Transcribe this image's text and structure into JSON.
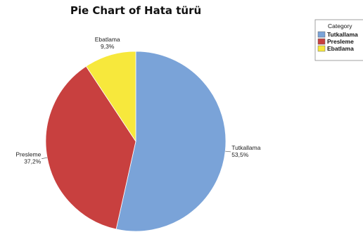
{
  "chart_data": {
    "type": "pie",
    "title": "Pie Chart of Hata türü",
    "legend_title": "Category",
    "legend_position": "top-right",
    "slices": [
      {
        "name": "Tutkallama",
        "value": 53.5,
        "label": "53,5%",
        "color": "#7aa3d8"
      },
      {
        "name": "Presleme",
        "value": 37.2,
        "label": "37,2%",
        "color": "#c8403f"
      },
      {
        "name": "Ebatlama",
        "value": 9.3,
        "label": "9,3%",
        "color": "#f7e83c"
      }
    ]
  }
}
